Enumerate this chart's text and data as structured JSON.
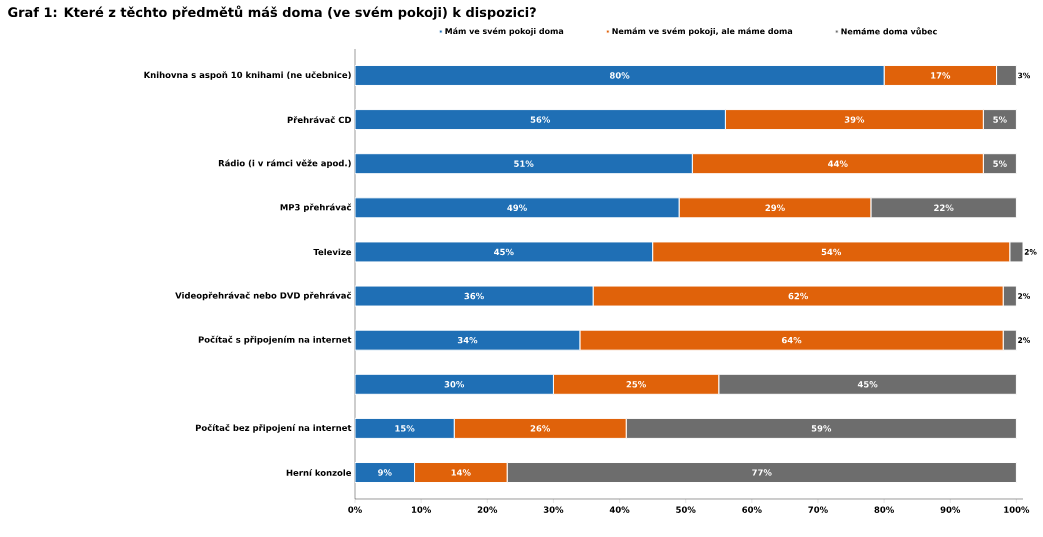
{
  "chart_data": {
    "type": "bar",
    "orientation": "horizontal",
    "stacked": true,
    "title": "Graf 1: Které z těchto předmětů máš doma (ve svém pokoji) k dispozici?",
    "categories": [
      "Knihovna s aspoň 10 knihami (ne učebnice)",
      "Přehrávač CD",
      "Rádio (i v rámci věže apod.)",
      "MP3 přehrávač",
      "Televize",
      "Videopřehrávač nebo DVD přehrávač",
      "Počítač s připojením na internet",
      null,
      "Počítač bez připojení na internet",
      "Herní konzole"
    ],
    "series": [
      {
        "name": "Mám ve svém pokoji doma",
        "color": "#1f6fb5",
        "values": [
          80,
          56,
          51,
          49,
          45,
          36,
          34,
          30,
          15,
          9
        ],
        "value_labels": [
          "80%",
          "56%",
          "51%",
          "49%",
          "45%",
          "36%",
          "34%",
          "30%",
          "15%",
          "9%"
        ]
      },
      {
        "name": "Nemám ve svém pokoji, ale máme doma",
        "color": "#e0620a",
        "values": [
          17,
          39,
          44,
          29,
          54,
          62,
          64,
          25,
          26,
          14
        ],
        "value_labels": [
          "17%",
          "39%",
          "44%",
          "29%",
          "54%",
          "62%",
          "64%",
          "25%",
          "26%",
          "14%"
        ]
      },
      {
        "name": "Nemáme doma vůbec",
        "color": "#6d6d6d",
        "values": [
          3,
          5,
          5,
          22,
          2,
          2,
          2,
          45,
          59,
          77
        ],
        "value_labels": [
          "3%",
          "5%",
          "5%",
          "22%",
          "2%",
          "2%",
          "2%",
          "45%",
          "59%",
          "77%"
        ]
      }
    ],
    "xlim": [
      0,
      101
    ],
    "xticks": [
      {
        "value": 0,
        "label": "0%"
      },
      {
        "value": 10,
        "label": "10%"
      },
      {
        "value": 20,
        "label": "20%"
      },
      {
        "value": 30,
        "label": "30%"
      },
      {
        "value": 40,
        "label": "40%"
      },
      {
        "value": 50,
        "label": "50%"
      },
      {
        "value": 60,
        "label": "60%"
      },
      {
        "value": 70,
        "label": "70%"
      },
      {
        "value": 80,
        "label": "80%"
      },
      {
        "value": 90,
        "label": "90%"
      },
      {
        "value": 100,
        "label": "100%"
      }
    ],
    "legend": "top",
    "grid": false
  }
}
